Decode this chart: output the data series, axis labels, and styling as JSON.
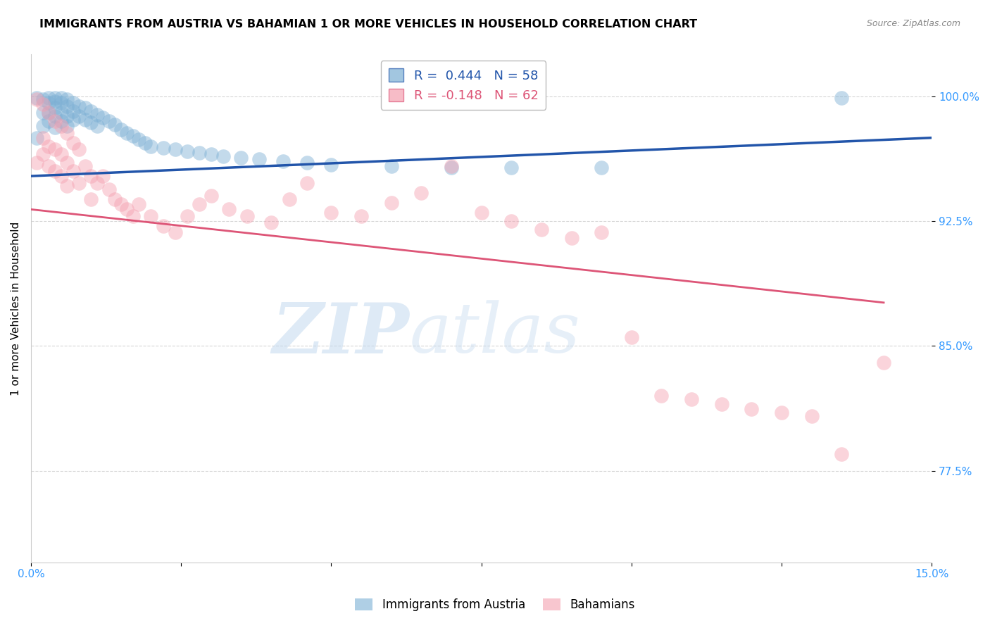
{
  "title": "IMMIGRANTS FROM AUSTRIA VS BAHAMIAN 1 OR MORE VEHICLES IN HOUSEHOLD CORRELATION CHART",
  "source": "Source: ZipAtlas.com",
  "ylabel": "1 or more Vehicles in Household",
  "xlim": [
    0.0,
    0.15
  ],
  "ylim": [
    0.72,
    1.025
  ],
  "yticks": [
    0.775,
    0.85,
    0.925,
    1.0
  ],
  "ytick_labels": [
    "77.5%",
    "85.0%",
    "92.5%",
    "100.0%"
  ],
  "xticks": [
    0.0,
    0.025,
    0.05,
    0.075,
    0.1,
    0.125,
    0.15
  ],
  "xtick_labels": [
    "0.0%",
    "",
    "",
    "",
    "",
    "",
    "15.0%"
  ],
  "legend_labels": [
    "Immigrants from Austria",
    "Bahamians"
  ],
  "blue_R": 0.444,
  "blue_N": 58,
  "pink_R": -0.148,
  "pink_N": 62,
  "blue_color": "#7BAFD4",
  "pink_color": "#F4A0B0",
  "blue_line_color": "#2255AA",
  "pink_line_color": "#DD5577",
  "blue_line_x0": 0.0,
  "blue_line_y0": 0.952,
  "blue_line_x1": 0.15,
  "blue_line_y1": 0.975,
  "pink_line_x0": 0.0,
  "pink_line_y0": 0.932,
  "pink_line_x1": 0.142,
  "pink_line_y1": 0.876,
  "blue_x": [
    0.001,
    0.001,
    0.002,
    0.002,
    0.002,
    0.003,
    0.003,
    0.003,
    0.003,
    0.004,
    0.004,
    0.004,
    0.004,
    0.004,
    0.005,
    0.005,
    0.005,
    0.005,
    0.006,
    0.006,
    0.006,
    0.006,
    0.007,
    0.007,
    0.007,
    0.008,
    0.008,
    0.009,
    0.009,
    0.01,
    0.01,
    0.011,
    0.011,
    0.012,
    0.013,
    0.014,
    0.015,
    0.016,
    0.017,
    0.018,
    0.019,
    0.02,
    0.022,
    0.024,
    0.026,
    0.028,
    0.03,
    0.032,
    0.035,
    0.038,
    0.042,
    0.046,
    0.05,
    0.06,
    0.07,
    0.08,
    0.095,
    0.135
  ],
  "blue_y": [
    0.999,
    0.975,
    0.998,
    0.99,
    0.982,
    0.999,
    0.996,
    0.99,
    0.985,
    0.999,
    0.997,
    0.993,
    0.988,
    0.981,
    0.999,
    0.996,
    0.99,
    0.985,
    0.998,
    0.994,
    0.988,
    0.982,
    0.996,
    0.991,
    0.986,
    0.994,
    0.988,
    0.993,
    0.986,
    0.991,
    0.984,
    0.989,
    0.982,
    0.987,
    0.985,
    0.983,
    0.98,
    0.978,
    0.976,
    0.974,
    0.972,
    0.97,
    0.969,
    0.968,
    0.967,
    0.966,
    0.965,
    0.964,
    0.963,
    0.962,
    0.961,
    0.96,
    0.959,
    0.958,
    0.957,
    0.957,
    0.957,
    0.999
  ],
  "pink_x": [
    0.001,
    0.001,
    0.002,
    0.002,
    0.002,
    0.003,
    0.003,
    0.003,
    0.004,
    0.004,
    0.004,
    0.005,
    0.005,
    0.005,
    0.006,
    0.006,
    0.006,
    0.007,
    0.007,
    0.008,
    0.008,
    0.009,
    0.01,
    0.01,
    0.011,
    0.012,
    0.013,
    0.014,
    0.015,
    0.016,
    0.017,
    0.018,
    0.02,
    0.022,
    0.024,
    0.026,
    0.028,
    0.03,
    0.033,
    0.036,
    0.04,
    0.043,
    0.046,
    0.05,
    0.055,
    0.06,
    0.065,
    0.07,
    0.075,
    0.08,
    0.085,
    0.09,
    0.095,
    0.1,
    0.105,
    0.11,
    0.115,
    0.12,
    0.125,
    0.13,
    0.135,
    0.142
  ],
  "pink_y": [
    0.998,
    0.96,
    0.995,
    0.975,
    0.965,
    0.99,
    0.97,
    0.958,
    0.985,
    0.968,
    0.955,
    0.982,
    0.965,
    0.952,
    0.978,
    0.96,
    0.946,
    0.972,
    0.955,
    0.968,
    0.948,
    0.958,
    0.952,
    0.938,
    0.948,
    0.952,
    0.944,
    0.938,
    0.935,
    0.932,
    0.928,
    0.935,
    0.928,
    0.922,
    0.918,
    0.928,
    0.935,
    0.94,
    0.932,
    0.928,
    0.924,
    0.938,
    0.948,
    0.93,
    0.928,
    0.936,
    0.942,
    0.958,
    0.93,
    0.925,
    0.92,
    0.915,
    0.918,
    0.855,
    0.82,
    0.818,
    0.815,
    0.812,
    0.81,
    0.808,
    0.785,
    0.84
  ]
}
